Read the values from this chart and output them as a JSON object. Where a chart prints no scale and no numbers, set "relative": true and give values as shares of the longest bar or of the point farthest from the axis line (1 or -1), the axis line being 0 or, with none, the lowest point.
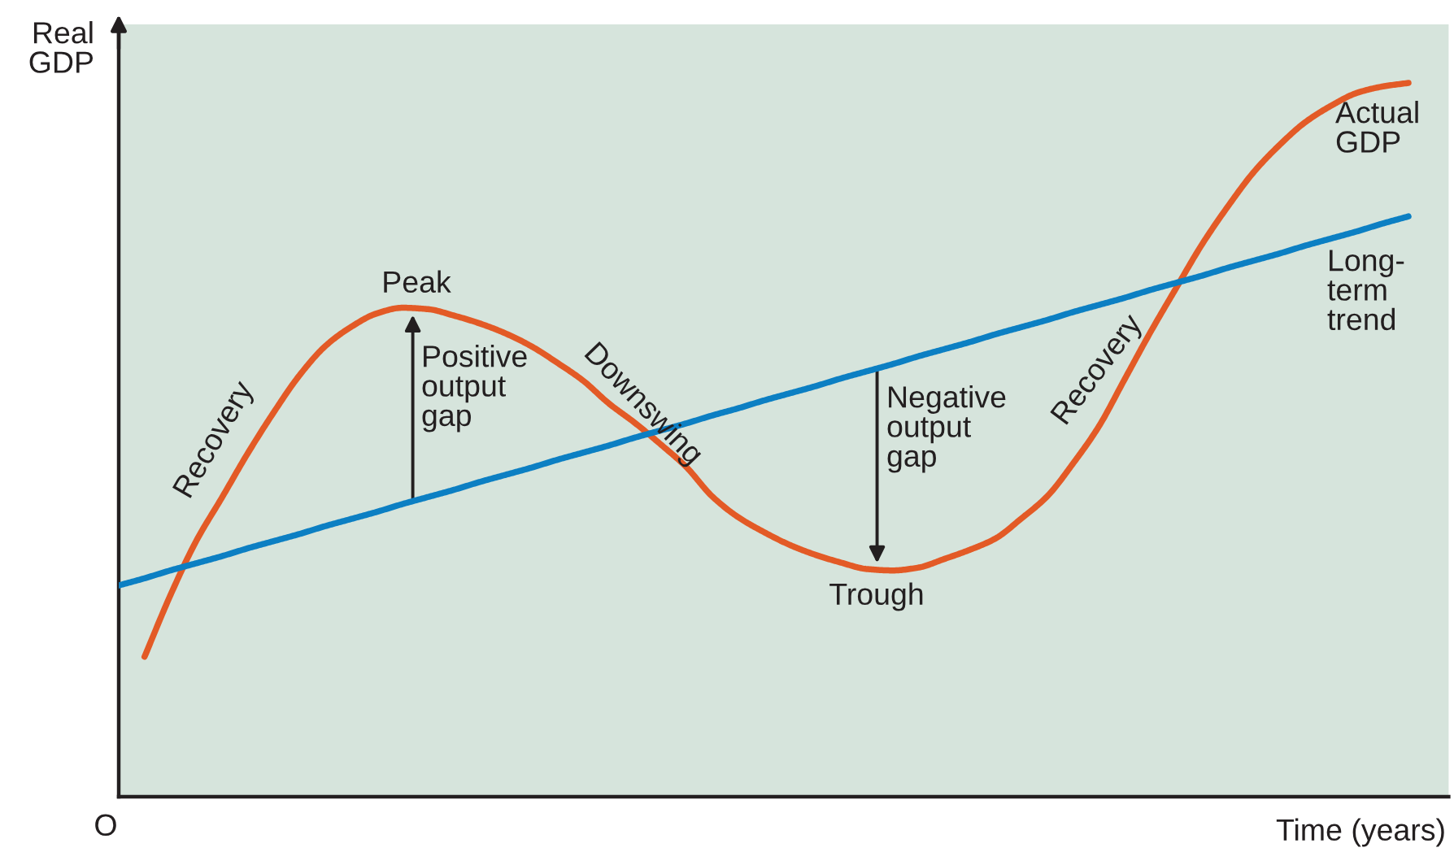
{
  "chart_data": {
    "type": "line",
    "relative": true,
    "line_style": "solid",
    "xlabel": "Time (years)",
    "ylabel": "Real GDP",
    "categories": [
      null,
      null,
      null,
      null,
      null,
      null,
      null,
      null,
      null,
      null,
      null,
      null,
      null,
      null,
      null,
      null,
      null,
      null,
      null,
      null,
      null,
      null,
      null,
      null,
      null,
      null,
      null,
      null,
      null,
      null,
      null,
      null,
      null,
      null,
      null,
      null,
      null,
      null,
      null,
      null,
      null,
      null,
      null,
      null,
      null,
      null,
      null,
      null,
      null,
      null,
      null
    ],
    "series": [
      {
        "name": "Actual GDP",
        "color": "#e35a26",
        "values": [
          null,
          0.196,
          0.282,
          0.358,
          0.419,
          0.481,
          0.538,
          0.59,
          0.631,
          0.658,
          0.677,
          0.685,
          0.683,
          0.674,
          0.663,
          0.649,
          0.631,
          0.608,
          0.583,
          0.551,
          0.524,
          0.494,
          0.462,
          0.421,
          0.392,
          0.371,
          0.353,
          0.339,
          0.328,
          0.319,
          0.317,
          0.321,
          0.333,
          0.346,
          0.362,
          0.39,
          0.421,
          0.467,
          0.519,
          0.585,
          0.651,
          0.713,
          0.774,
          0.827,
          0.875,
          0.913,
          0.945,
          0.968,
          0.986,
          0.995,
          1.0
        ]
      },
      {
        "name": "Long-term trend",
        "color": "#0c7fc3",
        "values": [
          0.296,
          0.306,
          0.317,
          0.327,
          0.337,
          0.348,
          0.358,
          0.368,
          0.379,
          0.389,
          0.399,
          0.41,
          0.42,
          0.43,
          0.441,
          0.451,
          0.461,
          0.472,
          0.482,
          0.492,
          0.503,
          0.513,
          0.523,
          0.534,
          0.544,
          0.555,
          0.565,
          0.575,
          0.586,
          0.596,
          0.606,
          0.617,
          0.627,
          0.637,
          0.648,
          0.658,
          0.668,
          0.679,
          0.689,
          0.699,
          0.71,
          0.72,
          0.73,
          0.741,
          0.751,
          0.761,
          0.772,
          0.782,
          0.792,
          0.803,
          0.813
        ]
      }
    ],
    "annotations": [
      "Peak",
      "Positive output gap",
      "Downswing",
      "Negative output gap",
      "Trough",
      "Recovery",
      "Recovery",
      "O"
    ]
  }
}
